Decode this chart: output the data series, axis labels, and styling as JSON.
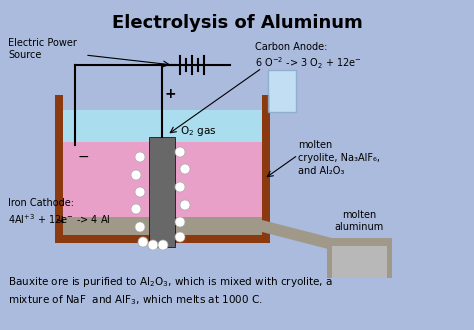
{
  "title": "Electrolysis of Aluminum",
  "bg_color": "#aabbdd",
  "tank_wall_color": "#8B3A10",
  "bottom_layer_color": "#a09888",
  "melt_color": "#e8a0c8",
  "top_liquid_color": "#aaddee",
  "anode_color": "#686868",
  "footnote1": "Bauxite ore is purified to Al$_2$O$_3$, which is mixed with cryolite, a",
  "footnote2": "mixture of NaF  and AlF$_3$, which melts at 1000 C."
}
